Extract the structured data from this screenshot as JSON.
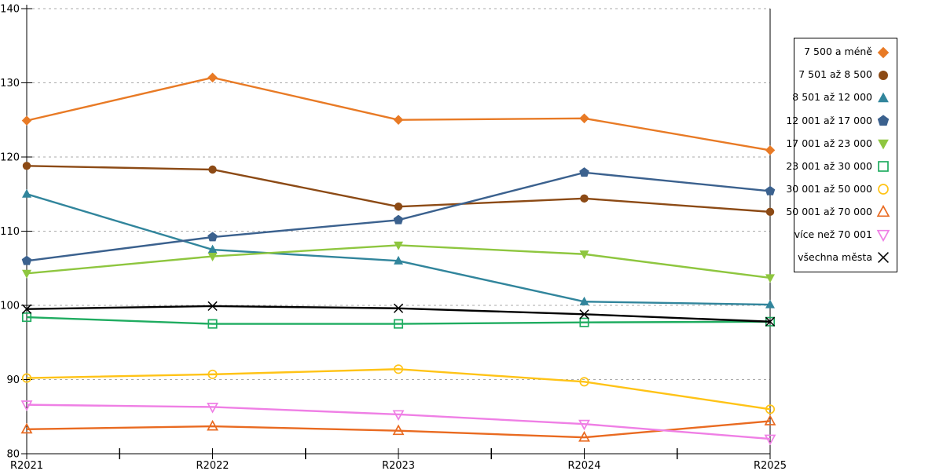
{
  "chart_data": {
    "type": "line",
    "title": "",
    "xlabel": "",
    "ylabel": "",
    "categories": [
      "R2021",
      "R2022",
      "R2023",
      "R2024",
      "R2025"
    ],
    "ylim": [
      80,
      140
    ],
    "yticks": [
      80,
      90,
      100,
      110,
      120,
      130,
      140
    ],
    "grid": "horizontal-dotted",
    "grid_color": "#aaaaaa",
    "axis_color": "#000000",
    "legend_position": "right-outside",
    "series": [
      {
        "name": "7 500 a méně",
        "marker": "diamond",
        "fill": "filled",
        "color": "#E87A25",
        "values": [
          124.9,
          130.7,
          125.0,
          125.2,
          120.9
        ]
      },
      {
        "name": "7 501 až 8 500",
        "marker": "circle",
        "fill": "filled",
        "color": "#8C4A15",
        "values": [
          118.8,
          118.3,
          113.3,
          114.4,
          112.6
        ]
      },
      {
        "name": "8 501 až 12 000",
        "marker": "triangle-up",
        "fill": "filled",
        "color": "#31859C",
        "values": [
          115.0,
          107.5,
          106.0,
          100.5,
          100.1
        ]
      },
      {
        "name": "12 001 až 17 000",
        "marker": "pentagon",
        "fill": "filled",
        "color": "#3B618E",
        "values": [
          106.0,
          109.2,
          111.5,
          117.9,
          115.4
        ]
      },
      {
        "name": "17 001 až 23 000",
        "marker": "triangle-down",
        "fill": "filled",
        "color": "#8EC63F",
        "values": [
          104.3,
          106.6,
          108.1,
          106.9,
          103.7
        ]
      },
      {
        "name": "23 001 až 30 000",
        "marker": "square",
        "fill": "open",
        "color": "#1FAC60",
        "values": [
          98.4,
          97.5,
          97.5,
          97.7,
          97.8
        ]
      },
      {
        "name": "30 001 až 50 000",
        "marker": "circle",
        "fill": "open",
        "color": "#FFC316",
        "values": [
          90.2,
          90.7,
          91.4,
          89.7,
          86.0
        ]
      },
      {
        "name": "50 001 až 70 000",
        "marker": "triangle-up",
        "fill": "open",
        "color": "#E96A20",
        "values": [
          83.3,
          83.7,
          83.1,
          82.2,
          84.4
        ]
      },
      {
        "name": "více než 70 001",
        "marker": "triangle-down",
        "fill": "open",
        "color": "#EF7FE5",
        "values": [
          86.6,
          86.3,
          85.3,
          84.0,
          82.0
        ]
      },
      {
        "name": "všechna města",
        "marker": "x",
        "fill": "line",
        "color": "#000000",
        "values": [
          99.5,
          99.9,
          99.6,
          98.8,
          97.8
        ]
      }
    ]
  }
}
